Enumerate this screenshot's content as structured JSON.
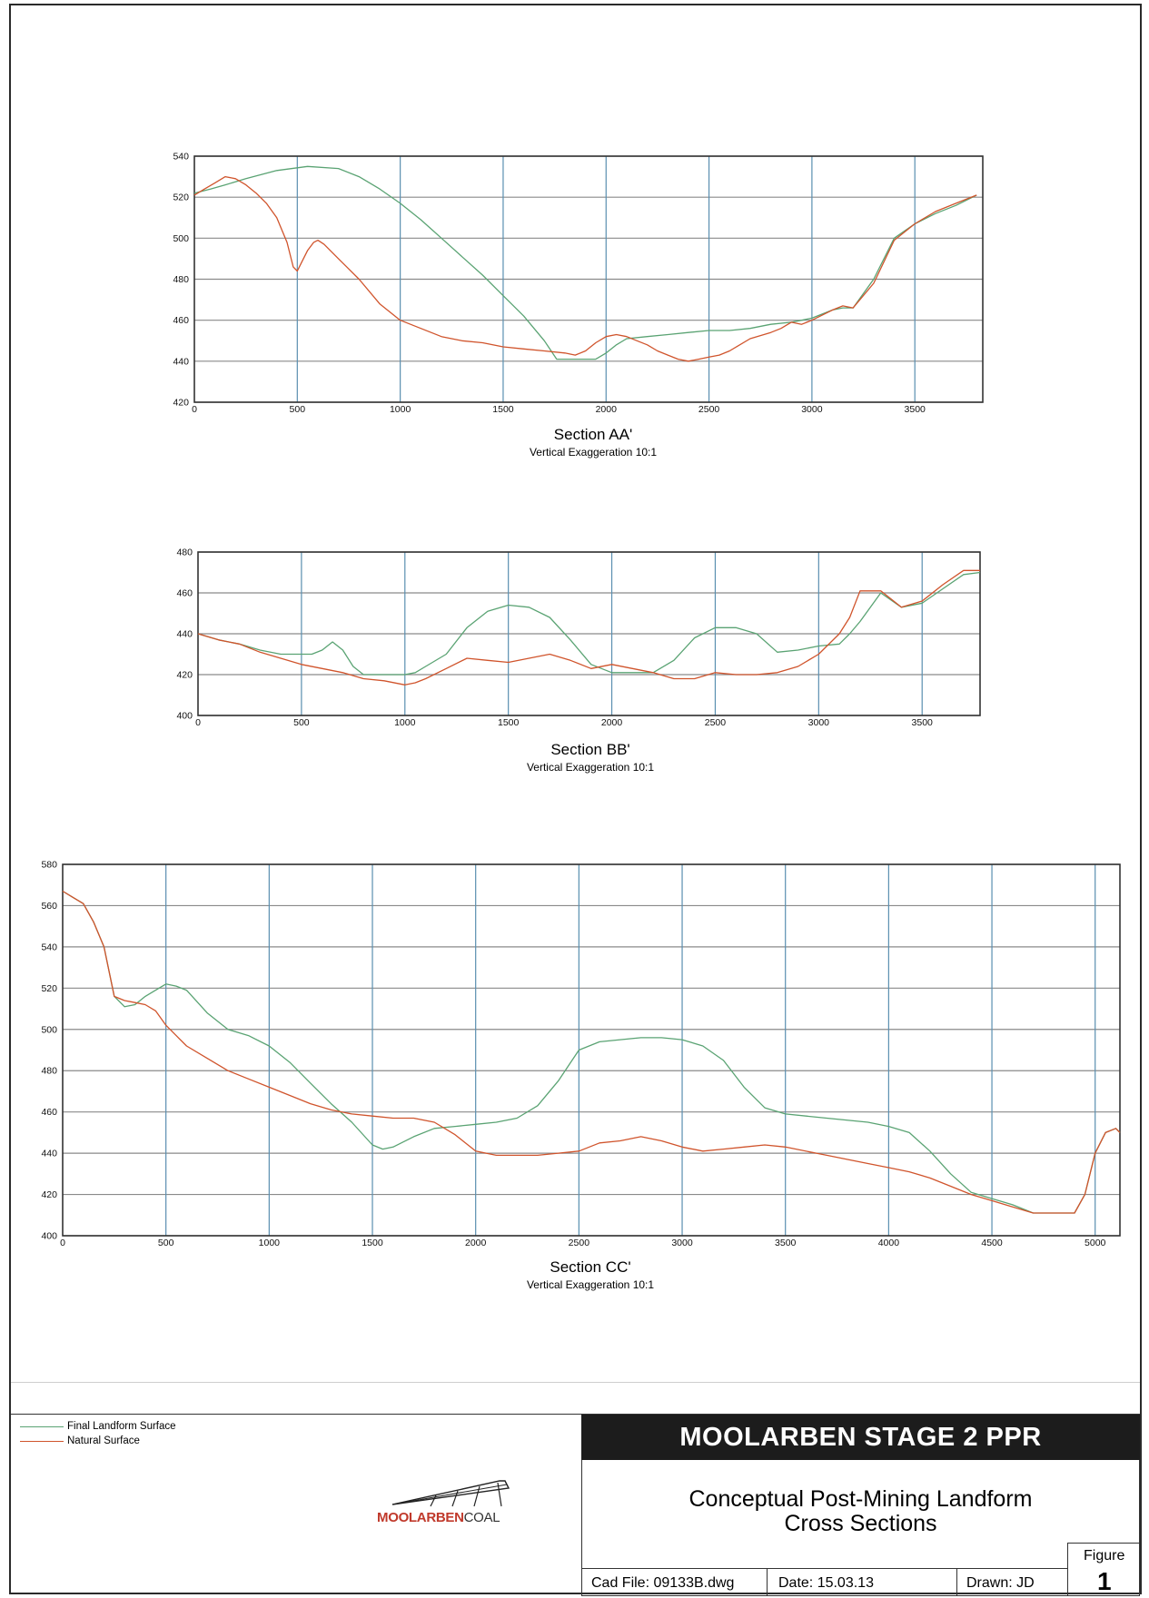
{
  "colors": {
    "final_landform": "#5aa373",
    "natural_surface": "#d0542c",
    "grid": "#8a8a8a",
    "vertical_grid": "#5a8fb0",
    "banner_bg": "#1c1c1c"
  },
  "chart_data": [
    {
      "type": "line",
      "title": "Section AA'",
      "subtitle": "Vertical Exaggeration 10:1",
      "xlim": [
        0,
        3830
      ],
      "ylim": [
        420,
        540
      ],
      "x_ticks": [
        0,
        500,
        1000,
        1500,
        2000,
        2500,
        3000,
        3500
      ],
      "y_ticks": [
        420,
        440,
        460,
        480,
        500,
        520,
        540
      ],
      "grid": true,
      "series": [
        {
          "name": "Final Landform Surface",
          "x": [
            0,
            80,
            150,
            250,
            400,
            550,
            700,
            800,
            900,
            1000,
            1100,
            1200,
            1300,
            1400,
            1500,
            1600,
            1700,
            1760,
            1800,
            1900,
            1950,
            2000,
            2050,
            2100,
            2200,
            2300,
            2400,
            2500,
            2600,
            2700,
            2800,
            2900,
            2950,
            3000,
            3100,
            3150,
            3200,
            3300,
            3400,
            3500,
            3600,
            3700,
            3800
          ],
          "y": [
            522,
            524,
            526,
            529,
            533,
            535,
            534,
            530,
            524,
            517,
            509,
            500,
            491,
            482,
            472,
            462,
            450,
            441,
            441,
            441,
            441,
            444,
            448,
            451,
            452,
            453,
            454,
            455,
            455,
            456,
            458,
            459,
            460,
            461,
            465,
            466,
            466,
            480,
            500,
            507,
            512,
            516,
            521
          ]
        },
        {
          "name": "Natural Surface",
          "x": [
            0,
            50,
            100,
            150,
            200,
            250,
            300,
            350,
            400,
            450,
            480,
            500,
            520,
            550,
            580,
            600,
            630,
            700,
            800,
            900,
            1000,
            1100,
            1200,
            1300,
            1400,
            1500,
            1600,
            1700,
            1800,
            1850,
            1900,
            1950,
            2000,
            2050,
            2100,
            2150,
            2200,
            2250,
            2300,
            2350,
            2400,
            2450,
            2500,
            2550,
            2600,
            2700,
            2800,
            2850,
            2900,
            2950,
            3000,
            3100,
            3150,
            3200,
            3300,
            3400,
            3500,
            3600,
            3700,
            3800
          ],
          "y": [
            521,
            524,
            527,
            530,
            529,
            526,
            522,
            517,
            510,
            498,
            486,
            484,
            488,
            494,
            498,
            499,
            497,
            490,
            480,
            468,
            460,
            456,
            452,
            450,
            449,
            447,
            446,
            445,
            444,
            443,
            445,
            449,
            452,
            453,
            452,
            450,
            448,
            445,
            443,
            441,
            440,
            441,
            442,
            443,
            445,
            451,
            454,
            456,
            459,
            458,
            460,
            465,
            467,
            466,
            478,
            499,
            507,
            513,
            517,
            521
          ]
        }
      ]
    },
    {
      "type": "line",
      "title": "Section BB'",
      "subtitle": "Vertical Exaggeration 10:1",
      "xlim": [
        0,
        3780
      ],
      "ylim": [
        400,
        480
      ],
      "x_ticks": [
        0,
        500,
        1000,
        1500,
        2000,
        2500,
        3000,
        3500
      ],
      "y_ticks": [
        400,
        420,
        440,
        460,
        480
      ],
      "grid": true,
      "series": [
        {
          "name": "Final Landform Surface",
          "x": [
            0,
            100,
            200,
            300,
            400,
            500,
            550,
            600,
            650,
            700,
            750,
            800,
            900,
            1000,
            1050,
            1100,
            1200,
            1300,
            1400,
            1500,
            1600,
            1700,
            1800,
            1900,
            2000,
            2100,
            2200,
            2300,
            2400,
            2500,
            2600,
            2700,
            2800,
            2900,
            3000,
            3100,
            3150,
            3200,
            3300,
            3400,
            3500,
            3600,
            3700,
            3780
          ],
          "y": [
            440,
            437,
            435,
            432,
            430,
            430,
            430,
            432,
            436,
            432,
            424,
            420,
            420,
            420,
            421,
            424,
            430,
            443,
            451,
            454,
            453,
            448,
            437,
            425,
            421,
            421,
            421,
            427,
            438,
            443,
            443,
            440,
            431,
            432,
            434,
            435,
            440,
            446,
            460,
            453,
            455,
            462,
            469,
            470
          ]
        },
        {
          "name": "Natural Surface",
          "x": [
            0,
            100,
            200,
            300,
            400,
            500,
            600,
            700,
            800,
            900,
            1000,
            1050,
            1100,
            1200,
            1300,
            1400,
            1500,
            1600,
            1700,
            1800,
            1900,
            2000,
            2100,
            2200,
            2300,
            2400,
            2500,
            2600,
            2700,
            2800,
            2900,
            3000,
            3100,
            3150,
            3200,
            3300,
            3400,
            3500,
            3600,
            3700,
            3780
          ],
          "y": [
            440,
            437,
            435,
            431,
            428,
            425,
            423,
            421,
            418,
            417,
            415,
            416,
            418,
            423,
            428,
            427,
            426,
            428,
            430,
            427,
            423,
            425,
            423,
            421,
            418,
            418,
            421,
            420,
            420,
            421,
            424,
            430,
            440,
            448,
            461,
            461,
            453,
            456,
            464,
            471,
            471
          ]
        }
      ]
    },
    {
      "type": "line",
      "title": "Section CC'",
      "subtitle": "Vertical Exaggeration 10:1",
      "xlim": [
        0,
        5120
      ],
      "ylim": [
        400,
        580
      ],
      "x_ticks": [
        0,
        500,
        1000,
        1500,
        2000,
        2500,
        3000,
        3500,
        4000,
        4500,
        5000
      ],
      "y_ticks": [
        400,
        420,
        440,
        460,
        480,
        500,
        520,
        540,
        560,
        580
      ],
      "grid": true,
      "series": [
        {
          "name": "Final Landform Surface",
          "x": [
            0,
            50,
            100,
            150,
            200,
            250,
            300,
            350,
            400,
            450,
            500,
            550,
            600,
            700,
            800,
            900,
            1000,
            1100,
            1200,
            1300,
            1400,
            1500,
            1550,
            1600,
            1700,
            1800,
            1900,
            2000,
            2100,
            2200,
            2300,
            2400,
            2500,
            2600,
            2700,
            2800,
            2900,
            3000,
            3100,
            3200,
            3300,
            3400,
            3500,
            3700,
            3900,
            4000,
            4100,
            4200,
            4300,
            4400,
            4500,
            4600,
            4700,
            4800,
            4900,
            4950,
            5000,
            5050,
            5100,
            5120
          ],
          "y": [
            567,
            564,
            561,
            552,
            540,
            516,
            511,
            512,
            516,
            519,
            522,
            521,
            519,
            508,
            500,
            497,
            492,
            484,
            474,
            464,
            455,
            444,
            442,
            443,
            448,
            452,
            453,
            454,
            455,
            457,
            463,
            475,
            490,
            494,
            495,
            496,
            496,
            495,
            492,
            485,
            472,
            462,
            459,
            457,
            455,
            453,
            450,
            441,
            430,
            421,
            418,
            415,
            411,
            411,
            411,
            420,
            440,
            450,
            452,
            450
          ]
        },
        {
          "name": "Natural Surface",
          "x": [
            0,
            50,
            100,
            150,
            200,
            250,
            300,
            350,
            400,
            450,
            500,
            550,
            600,
            700,
            800,
            900,
            1000,
            1100,
            1200,
            1300,
            1400,
            1500,
            1600,
            1700,
            1800,
            1900,
            2000,
            2100,
            2200,
            2300,
            2400,
            2500,
            2600,
            2700,
            2800,
            2900,
            3000,
            3100,
            3200,
            3300,
            3400,
            3500,
            3700,
            3900,
            4000,
            4100,
            4200,
            4300,
            4400,
            4500,
            4600,
            4700,
            4800,
            4900,
            4950,
            5000,
            5050,
            5100,
            5120
          ],
          "y": [
            567,
            564,
            561,
            552,
            540,
            516,
            514,
            513,
            512,
            509,
            502,
            497,
            492,
            486,
            480,
            476,
            472,
            468,
            464,
            461,
            459,
            458,
            457,
            457,
            455,
            449,
            441,
            439,
            439,
            439,
            440,
            441,
            445,
            446,
            448,
            446,
            443,
            441,
            442,
            443,
            444,
            443,
            439,
            435,
            433,
            431,
            428,
            424,
            420,
            417,
            414,
            411,
            411,
            411,
            420,
            440,
            450,
            452,
            450
          ]
        }
      ]
    }
  ],
  "legend": [
    {
      "label": "Final Landform Surface",
      "color": "#5aa373"
    },
    {
      "label": "Natural Surface",
      "color": "#d0542c"
    }
  ],
  "title_block": {
    "project": "MOOLARBEN STAGE 2 PPR",
    "description_line1": "Conceptual Post-Mining Landform",
    "description_line2": "Cross Sections",
    "cad_file": "Cad File: 09133B.dwg",
    "date": "Date: 15.03.13",
    "drawn": "Drawn: JD",
    "figure_label": "Figure",
    "figure_number": "1"
  },
  "logo": {
    "brand_main": "MOOLARBEN",
    "brand_coal": "COAL"
  }
}
